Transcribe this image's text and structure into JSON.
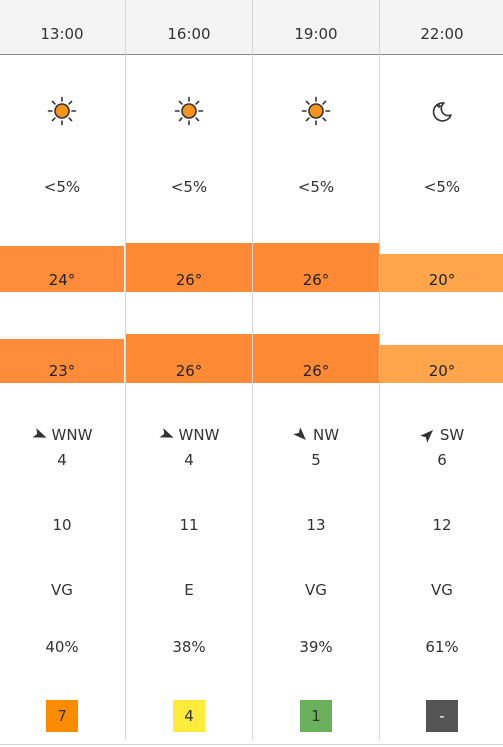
{
  "columns": [
    {
      "time": "13:00",
      "icon": "sun-icon",
      "precip": "<5%",
      "temp": "24°",
      "temp_color": "#ff8c3a",
      "temp_level": 24,
      "feels": "23°",
      "feels_color": "#ff8c3a",
      "feels_level": 23,
      "wind_dir": "WNW",
      "wind_deg": 292,
      "wind_speed": "4",
      "gust": "10",
      "visibility": "VG",
      "humidity": "40%",
      "uv": "7",
      "uv_color": "#fb8c00",
      "uv_text_color": "#333333"
    },
    {
      "time": "16:00",
      "icon": "sun-icon",
      "precip": "<5%",
      "temp": "26°",
      "temp_color": "#ff8a36",
      "temp_level": 26,
      "feels": "26°",
      "feels_color": "#ff8a36",
      "feels_level": 26,
      "wind_dir": "WNW",
      "wind_deg": 292,
      "wind_speed": "4",
      "gust": "11",
      "visibility": "E",
      "humidity": "38%",
      "uv": "4",
      "uv_color": "#ffeb3b",
      "uv_text_color": "#333333"
    },
    {
      "time": "19:00",
      "icon": "sun-icon",
      "precip": "<5%",
      "temp": "26°",
      "temp_color": "#ff8a36",
      "temp_level": 26,
      "feels": "26°",
      "feels_color": "#ff8a36",
      "feels_level": 26,
      "wind_dir": "NW",
      "wind_deg": 315,
      "wind_speed": "5",
      "gust": "13",
      "visibility": "VG",
      "humidity": "39%",
      "uv": "1",
      "uv_color": "#6bb05c",
      "uv_text_color": "#333333"
    },
    {
      "time": "22:00",
      "icon": "moon-icon",
      "precip": "<5%",
      "temp": "20°",
      "temp_color": "#ffa64d",
      "temp_level": 20,
      "feels": "20°",
      "feels_color": "#ffa64d",
      "feels_level": 20,
      "wind_dir": "SW",
      "wind_deg": 225,
      "wind_speed": "6",
      "gust": "12",
      "visibility": "VG",
      "humidity": "61%",
      "uv": "-",
      "uv_color": "#555555",
      "uv_text_color": "#ffffff"
    }
  ]
}
